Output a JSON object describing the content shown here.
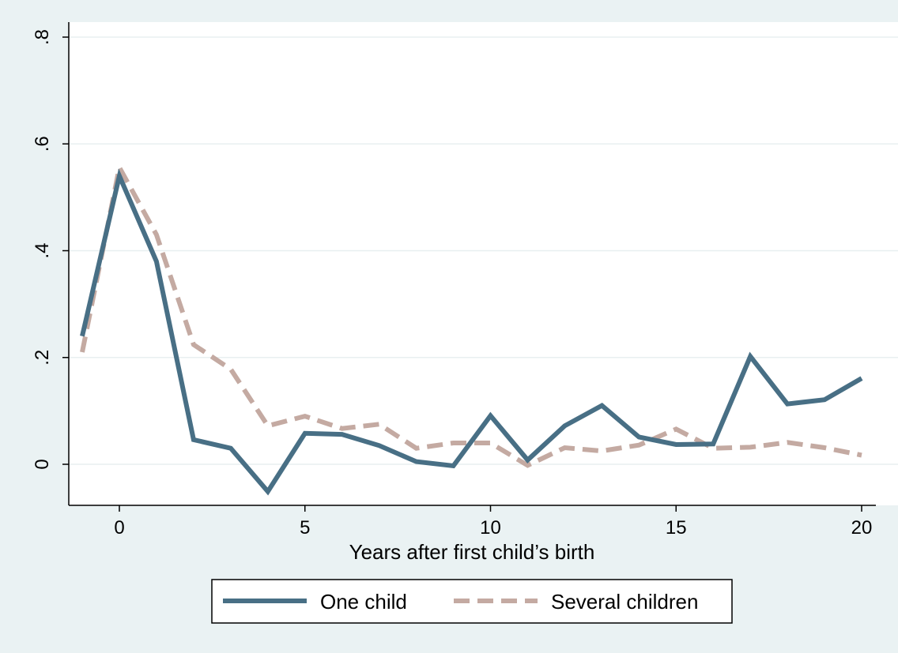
{
  "chart_data": {
    "type": "line",
    "title": "",
    "xlabel": "Years after first child’s birth",
    "ylabel": "",
    "xlim": [
      -1,
      20
    ],
    "ylim": [
      -0.05,
      0.8
    ],
    "xticks": [
      0,
      5,
      10,
      15,
      20
    ],
    "xtick_labels": [
      "0",
      "5",
      "10",
      "15",
      "20"
    ],
    "yticks": [
      0,
      0.2,
      0.4,
      0.6,
      0.8
    ],
    "ytick_labels": [
      "0",
      ".2",
      ".4",
      ".6",
      ".8"
    ],
    "grid": true,
    "legend_position": "bottom",
    "x": [
      -1,
      0,
      1,
      2,
      3,
      4,
      5,
      6,
      7,
      8,
      9,
      10,
      11,
      12,
      13,
      14,
      15,
      16,
      17,
      18,
      19,
      20
    ],
    "series": [
      {
        "name": "One child",
        "color": "#486f85",
        "style": "solid",
        "values": [
          0.24,
          0.54,
          0.38,
          0.046,
          0.03,
          -0.051,
          0.058,
          0.056,
          0.035,
          0.005,
          -0.003,
          0.091,
          0.008,
          0.072,
          0.11,
          0.051,
          0.037,
          0.038,
          0.202,
          0.113,
          0.121,
          0.161
        ]
      },
      {
        "name": "Several children",
        "color": "#c4aaa2",
        "style": "dashed",
        "values": [
          0.21,
          0.556,
          0.43,
          0.224,
          0.178,
          0.072,
          0.09,
          0.067,
          0.075,
          0.03,
          0.04,
          0.04,
          -0.002,
          0.031,
          0.025,
          0.036,
          0.066,
          0.03,
          0.032,
          0.041,
          0.031,
          0.017
        ]
      }
    ]
  }
}
